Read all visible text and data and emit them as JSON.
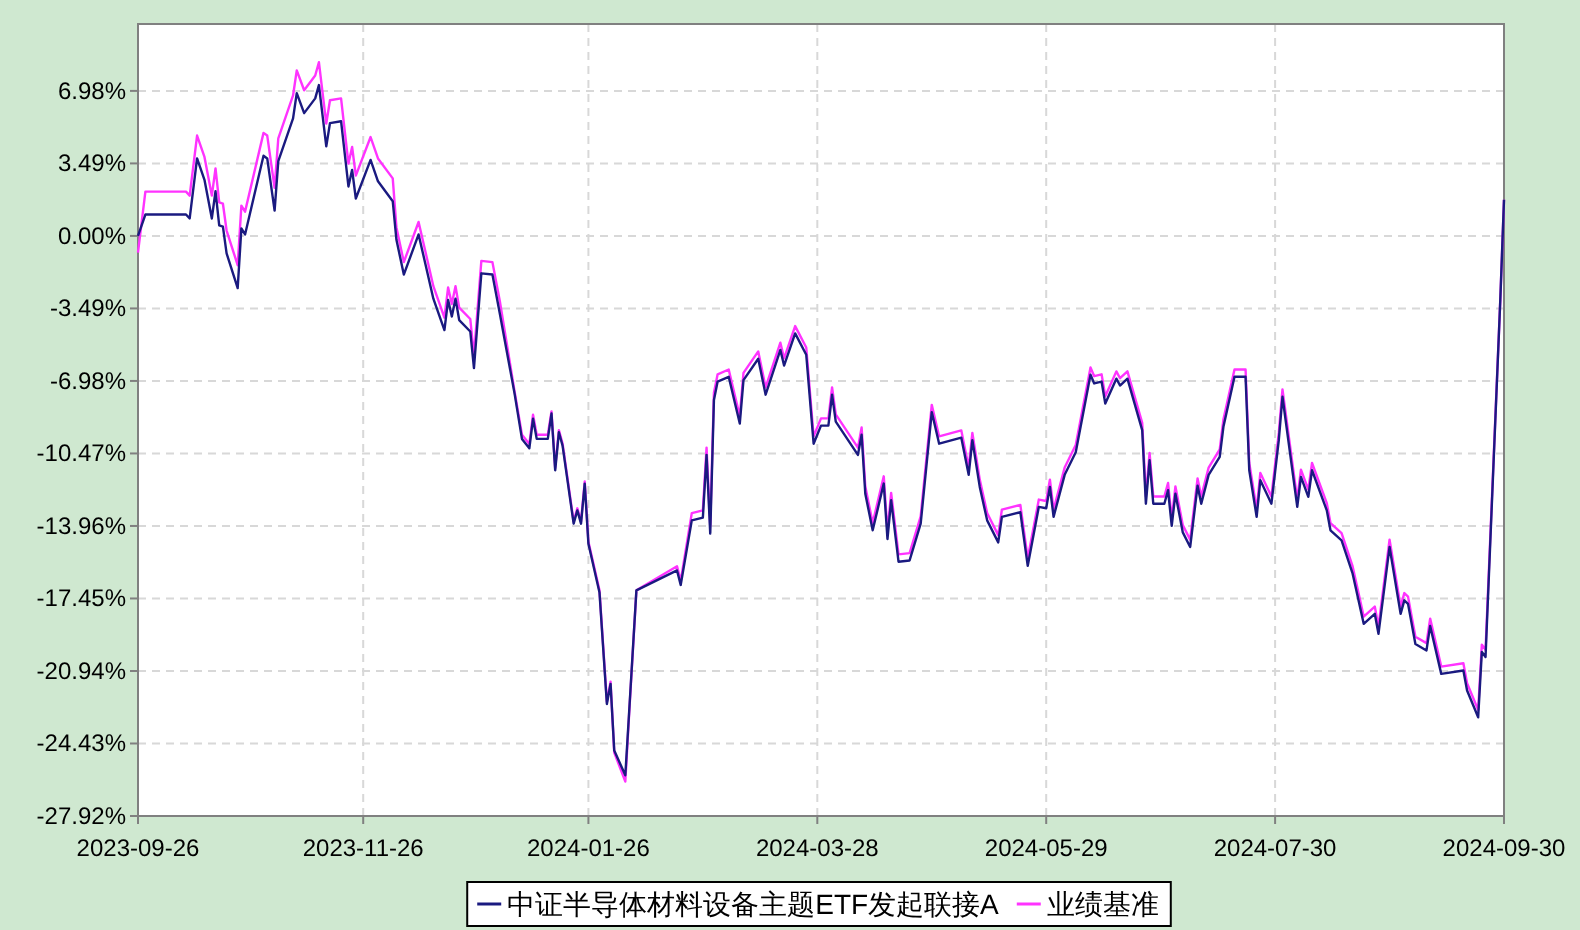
{
  "chart_data": {
    "type": "line",
    "grid": true,
    "legend": "bottom",
    "x": [
      "2023-09-26",
      "2023-09-28",
      "2023-10-09",
      "2023-10-10",
      "2023-10-12",
      "2023-10-14",
      "2023-10-16",
      "2023-10-17",
      "2023-10-18",
      "2023-10-19",
      "2023-10-20",
      "2023-10-23",
      "2023-10-24",
      "2023-10-25",
      "2023-10-30",
      "2023-10-31",
      "2023-11-02",
      "2023-11-03",
      "2023-11-07",
      "2023-11-08",
      "2023-11-10",
      "2023-11-13",
      "2023-11-14",
      "2023-11-16",
      "2023-11-17",
      "2023-11-20",
      "2023-11-22",
      "2023-11-23",
      "2023-11-24",
      "2023-11-28",
      "2023-11-30",
      "2023-12-04",
      "2023-12-05",
      "2023-12-07",
      "2023-12-11",
      "2023-12-13",
      "2023-12-15",
      "2023-12-18",
      "2023-12-19",
      "2023-12-20",
      "2023-12-21",
      "2023-12-22",
      "2023-12-25",
      "2023-12-26",
      "2023-12-28",
      "2023-12-31",
      "2024-01-02",
      "2024-01-06",
      "2024-01-08",
      "2024-01-10",
      "2024-01-11",
      "2024-01-12",
      "2024-01-15",
      "2024-01-16",
      "2024-01-17",
      "2024-01-18",
      "2024-01-19",
      "2024-01-22",
      "2024-01-23",
      "2024-01-24",
      "2024-01-25",
      "2024-01-26",
      "2024-01-29",
      "2024-01-31",
      "2024-02-01",
      "2024-02-02",
      "2024-02-05",
      "2024-02-06",
      "2024-02-08",
      "2024-02-19",
      "2024-02-20",
      "2024-02-23",
      "2024-02-26",
      "2024-02-27",
      "2024-02-28",
      "2024-02-29",
      "2024-03-01",
      "2024-03-04",
      "2024-03-07",
      "2024-03-08",
      "2024-03-12",
      "2024-03-14",
      "2024-03-18",
      "2024-03-19",
      "2024-03-22",
      "2024-03-25",
      "2024-03-27",
      "2024-03-29",
      "2024-03-31",
      "2024-04-01",
      "2024-04-02",
      "2024-04-08",
      "2024-04-09",
      "2024-04-10",
      "2024-04-12",
      "2024-04-15",
      "2024-04-16",
      "2024-04-17",
      "2024-04-19",
      "2024-04-22",
      "2024-04-25",
      "2024-04-28",
      "2024-04-30",
      "2024-05-06",
      "2024-05-08",
      "2024-05-09",
      "2024-05-11",
      "2024-05-13",
      "2024-05-16",
      "2024-05-17",
      "2024-05-22",
      "2024-05-24",
      "2024-05-27",
      "2024-05-29",
      "2024-05-30",
      "2024-05-31",
      "2024-06-03",
      "2024-06-06",
      "2024-06-10",
      "2024-06-11",
      "2024-06-13",
      "2024-06-14",
      "2024-06-17",
      "2024-06-18",
      "2024-06-20",
      "2024-06-24",
      "2024-06-25",
      "2024-06-26",
      "2024-06-27",
      "2024-06-30",
      "2024-07-01",
      "2024-07-02",
      "2024-07-03",
      "2024-07-05",
      "2024-07-07",
      "2024-07-09",
      "2024-07-10",
      "2024-07-12",
      "2024-07-15",
      "2024-07-16",
      "2024-07-19",
      "2024-07-22",
      "2024-07-23",
      "2024-07-25",
      "2024-07-26",
      "2024-07-29",
      "2024-07-31",
      "2024-08-01",
      "2024-08-05",
      "2024-08-06",
      "2024-08-08",
      "2024-08-09",
      "2024-08-13",
      "2024-08-14",
      "2024-08-17",
      "2024-08-20",
      "2024-08-23",
      "2024-08-26",
      "2024-08-27",
      "2024-08-30",
      "2024-09-02",
      "2024-09-03",
      "2024-09-04",
      "2024-09-06",
      "2024-09-09",
      "2024-09-10",
      "2024-09-13",
      "2024-09-19",
      "2024-09-20",
      "2024-09-23",
      "2024-09-24",
      "2024-09-25",
      "2024-09-29",
      "2024-09-30"
    ],
    "series": [
      {
        "name": "中证半导体材料设备主题ETF发起联接A",
        "color": "#1a1a80",
        "values": [
          0.0,
          1.03,
          1.03,
          0.84,
          3.73,
          2.7,
          0.84,
          2.15,
          0.51,
          0.45,
          -0.84,
          -2.51,
          0.36,
          0.07,
          3.86,
          3.73,
          1.22,
          3.6,
          5.66,
          6.87,
          5.91,
          6.62,
          7.26,
          4.31,
          5.43,
          5.52,
          2.38,
          3.18,
          1.8,
          3.66,
          2.63,
          1.67,
          -0.19,
          -1.86,
          0.07,
          -1.47,
          -3.02,
          -4.53,
          -3.08,
          -3.88,
          -3.02,
          -4.05,
          -4.6,
          -6.36,
          -1.8,
          -1.86,
          -3.73,
          -7.59,
          -9.77,
          -10.22,
          -8.8,
          -9.77,
          -9.77,
          -8.55,
          -11.28,
          -9.45,
          -10.09,
          -13.85,
          -13.21,
          -13.85,
          -11.92,
          -14.82,
          -17.16,
          -22.53,
          -21.56,
          -24.77,
          -25.96,
          -23.01,
          -17.06,
          -16.1,
          -16.8,
          -13.69,
          -13.56,
          -10.54,
          -14.33,
          -7.9,
          -7.01,
          -6.78,
          -9.03,
          -6.94,
          -5.91,
          -7.64,
          -5.49,
          -6.24,
          -4.69,
          -5.72,
          -10.0,
          -9.13,
          -9.13,
          -7.64,
          -8.94,
          -10.54,
          -9.57,
          -12.41,
          -14.17,
          -11.92,
          -14.59,
          -12.72,
          -15.68,
          -15.62,
          -13.85,
          -8.48,
          -10.0,
          -9.71,
          -11.5,
          -9.83,
          -12.08,
          -13.69,
          -14.75,
          -13.52,
          -13.3,
          -15.88,
          -13.04,
          -13.11,
          -12.08,
          -13.52,
          -11.5,
          -10.41,
          -6.68,
          -7.1,
          -7.01,
          -8.07,
          -6.87,
          -7.2,
          -6.87,
          -9.35,
          -12.89,
          -10.8,
          -12.89,
          -12.89,
          -12.24,
          -13.95,
          -12.41,
          -14.27,
          -14.97,
          -12.02,
          -12.89,
          -11.5,
          -10.63,
          -9.19,
          -6.78,
          -6.78,
          -11.28,
          -13.52,
          -11.76,
          -12.89,
          -9.83,
          -7.74,
          -13.04,
          -11.6,
          -12.56,
          -11.28,
          -13.21,
          -14.17,
          -14.65,
          -16.26,
          -18.67,
          -18.19,
          -19.15,
          -14.97,
          -18.19,
          -17.54,
          -17.71,
          -19.64,
          -19.95,
          -18.77,
          -21.08,
          -20.92,
          -21.88,
          -23.17,
          -20.02,
          -20.27,
          -3.08,
          1.74
        ]
      },
      {
        "name": "业绩基准",
        "color": "#ff33ff",
        "values": [
          -0.8,
          2.13,
          2.13,
          1.94,
          4.83,
          3.8,
          1.94,
          3.25,
          1.61,
          1.55,
          0.26,
          -1.41,
          1.46,
          1.17,
          4.96,
          4.83,
          2.32,
          4.7,
          6.76,
          7.97,
          7.01,
          7.72,
          8.36,
          5.41,
          6.53,
          6.62,
          3.48,
          4.28,
          2.9,
          4.76,
          3.73,
          2.77,
          0.41,
          -1.26,
          0.67,
          -0.87,
          -2.42,
          -3.93,
          -2.48,
          -3.28,
          -2.42,
          -3.45,
          -4.0,
          -5.76,
          -1.2,
          -1.26,
          -3.13,
          -7.49,
          -9.57,
          -10.02,
          -8.6,
          -9.57,
          -9.57,
          -8.45,
          -11.18,
          -9.35,
          -9.99,
          -13.75,
          -13.11,
          -13.75,
          -11.82,
          -14.72,
          -17.06,
          -22.43,
          -21.46,
          -24.87,
          -26.26,
          -23.11,
          -17.06,
          -15.9,
          -16.6,
          -13.34,
          -13.21,
          -10.19,
          -13.98,
          -7.55,
          -6.66,
          -6.43,
          -8.68,
          -6.59,
          -5.56,
          -7.29,
          -5.14,
          -5.89,
          -4.34,
          -5.37,
          -9.65,
          -8.78,
          -8.78,
          -7.29,
          -8.59,
          -10.19,
          -9.22,
          -12.06,
          -13.82,
          -11.57,
          -14.24,
          -12.37,
          -15.33,
          -15.27,
          -13.5,
          -8.13,
          -9.65,
          -9.36,
          -11.15,
          -9.48,
          -11.73,
          -13.34,
          -14.4,
          -13.17,
          -12.95,
          -15.53,
          -12.69,
          -12.76,
          -11.73,
          -13.17,
          -11.15,
          -10.06,
          -6.33,
          -6.75,
          -6.66,
          -7.72,
          -6.52,
          -6.85,
          -6.52,
          -9.0,
          -12.54,
          -10.45,
          -12.54,
          -12.54,
          -11.89,
          -13.6,
          -12.06,
          -13.92,
          -14.62,
          -11.67,
          -12.54,
          -11.15,
          -10.28,
          -8.84,
          -6.43,
          -6.43,
          -10.93,
          -13.17,
          -11.41,
          -12.54,
          -9.48,
          -7.39,
          -12.69,
          -11.25,
          -12.21,
          -10.93,
          -12.86,
          -13.82,
          -14.3,
          -15.91,
          -18.32,
          -17.84,
          -18.8,
          -14.62,
          -17.84,
          -17.19,
          -17.36,
          -19.29,
          -19.6,
          -18.42,
          -20.73,
          -20.57,
          -21.53,
          -22.82,
          -19.67,
          -19.92,
          -3.08,
          1.74
        ]
      }
    ],
    "xlim": [
      "2023-09-26",
      "2024-09-30"
    ],
    "xticks": [
      "2023-09-26",
      "2023-11-26",
      "2024-01-26",
      "2024-03-28",
      "2024-05-29",
      "2024-07-30",
      "2024-09-30"
    ],
    "ylim": [
      -27.92,
      10.2
    ],
    "yticks": [
      {
        "value": 6.98,
        "label": "6.98%"
      },
      {
        "value": 3.49,
        "label": "3.49%"
      },
      {
        "value": 0,
        "label": "0.00%"
      },
      {
        "value": -3.49,
        "label": "-3.49%"
      },
      {
        "value": -6.98,
        "label": "-6.98%"
      },
      {
        "value": -10.47,
        "label": "-10.47%"
      },
      {
        "value": -13.96,
        "label": "-13.96%"
      },
      {
        "value": -17.45,
        "label": "-17.45%"
      },
      {
        "value": -20.94,
        "label": "-20.94%"
      },
      {
        "value": -24.43,
        "label": "-24.43%"
      },
      {
        "value": -27.92,
        "label": "-27.92%"
      }
    ]
  }
}
